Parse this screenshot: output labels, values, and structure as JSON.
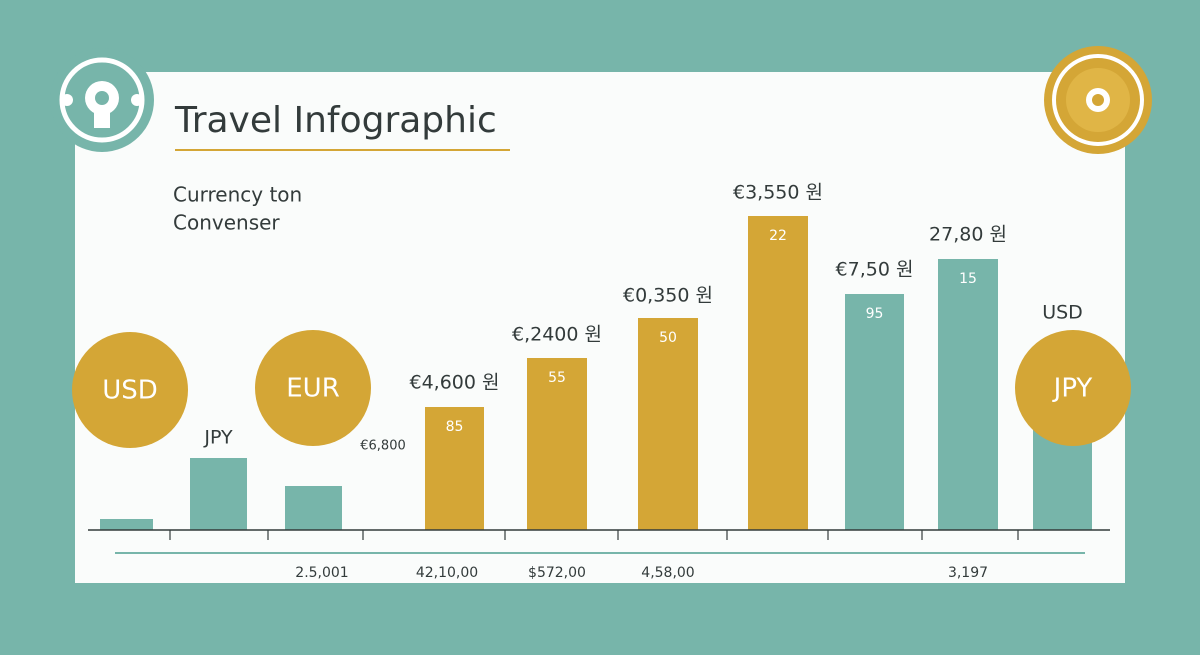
{
  "header": {
    "title": "Travel Infographic",
    "subtitle": [
      "Currency ton",
      "Convenser"
    ]
  },
  "bars": [
    {
      "top_label": null,
      "inner_label": null
    },
    {
      "top_label": "JPY",
      "inner_label": null
    },
    {
      "top_label": null,
      "inner_label": null
    },
    {
      "top_label": "€4,600 원",
      "inner_label": "85"
    },
    {
      "top_label": "€,2400 원",
      "inner_label": "55"
    },
    {
      "top_label": "€0,350 원",
      "inner_label": "50"
    },
    {
      "top_label": "€3,550 원",
      "inner_label": "22"
    },
    {
      "top_label": "€7,50 원",
      "inner_label": "95"
    },
    {
      "top_label": "27,80 원",
      "inner_label": "15"
    },
    {
      "top_label": "USD",
      "inner_label": null
    }
  ],
  "badges": [
    "USD",
    "EUR",
    "JPY"
  ],
  "note": "€6,800",
  "bottom_labels": [
    "2.5,001",
    "42,10,00",
    "$572,00",
    "4,58,00",
    "3,197"
  ]
}
